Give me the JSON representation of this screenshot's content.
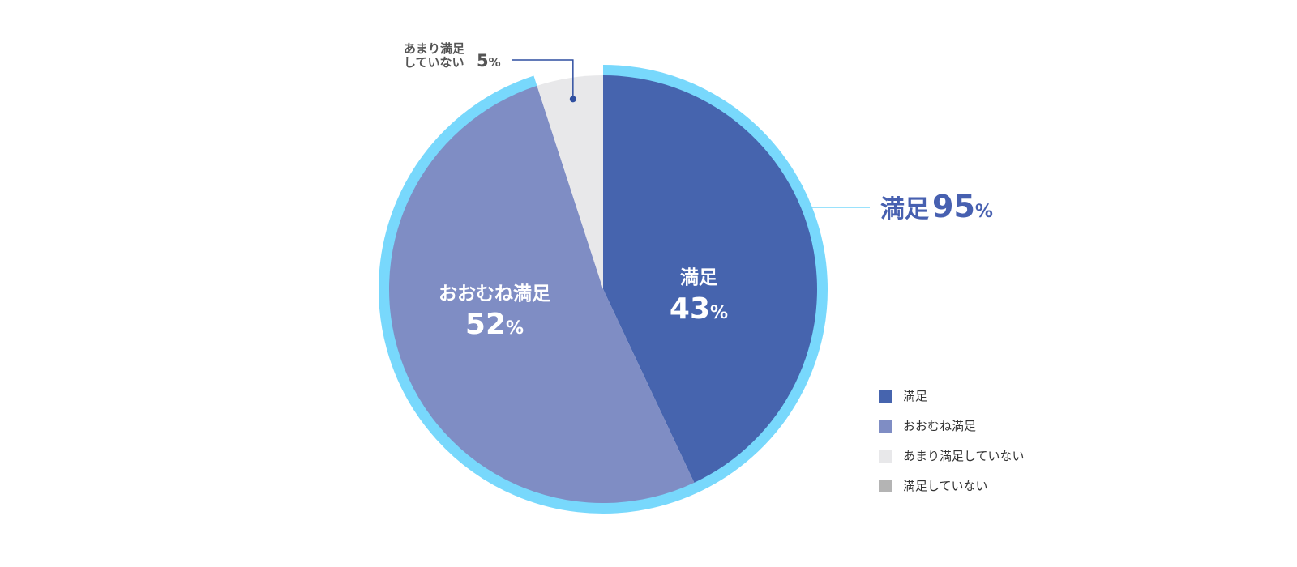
{
  "colors": {
    "satisfied": "#4664ae",
    "mostly": "#7f8dc4",
    "not_very": "#e8e8ea",
    "not": "#b4b4b4",
    "ring": "#78d8fc",
    "callout_line": "#2f4fa0",
    "summary_text": "#4760b0",
    "slice_text": "#ffffff",
    "dark_text": "#555555"
  },
  "chart_data": {
    "type": "pie",
    "slices": [
      {
        "key": "satisfied",
        "label": "満足",
        "value": 43,
        "unit": "%"
      },
      {
        "key": "mostly",
        "label": "おおむね満足",
        "value": 52,
        "unit": "%"
      },
      {
        "key": "not_very",
        "label_line1": "あまり満足",
        "label_line2": "していない",
        "value": 5,
        "unit": "%"
      },
      {
        "key": "not",
        "label": "満足していない",
        "value": 0,
        "unit": "%"
      }
    ],
    "summary": {
      "label": "満足",
      "value": 95,
      "unit": "%"
    },
    "legend": [
      "満足",
      "おおむね満足",
      "あまり満足していない",
      "満足していない"
    ]
  }
}
